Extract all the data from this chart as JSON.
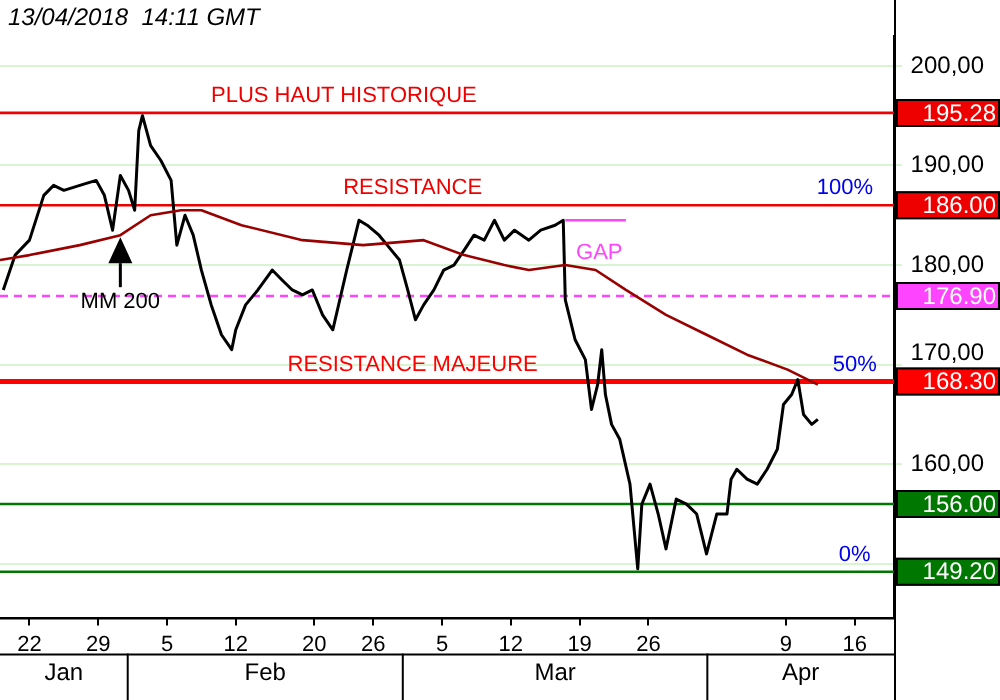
{
  "chart_data": {
    "type": "line",
    "series": [
      {
        "color": "#000000",
        "x": [
          "2018-01-19T08:00",
          "2018-01-20T13:00",
          "2018-01-22T00:00",
          "2018-01-23T11:00",
          "2018-01-24T11:00",
          "2018-01-25T12:00",
          "2018-01-27T03:00",
          "2018-01-28T19:00",
          "2018-01-29T15:00",
          "2018-01-30T11:00",
          "2018-01-31T06:00",
          "2018-02-01T02:00",
          "2018-02-01T17:00",
          "2018-02-02T03:00",
          "2018-02-02T12:00",
          "2018-02-03T08:00",
          "2018-02-04T09:00",
          "2018-02-05T10:00",
          "2018-02-06T00:00",
          "2018-02-06T20:00",
          "2018-02-07T16:00",
          "2018-02-08T12:00",
          "2018-02-09T12:00",
          "2018-02-10T13:00",
          "2018-02-11T14:00",
          "2018-02-12T00:00",
          "2018-02-13T00:00",
          "2018-02-14T06:00",
          "2018-02-15T17:00",
          "2018-02-16T17:00",
          "2018-02-17T18:00",
          "2018-02-18T19:00",
          "2018-02-19T19:00",
          "2018-02-20T20:00",
          "2018-02-21T21:00",
          "2018-02-23T07:00",
          "2018-02-24T13:00",
          "2018-02-25T09:00",
          "2018-02-26T14:00",
          "2018-02-27T10:00",
          "2018-02-28T16:00",
          "2018-03-01T12:00",
          "2018-03-02T07:00",
          "2018-03-03T03:00",
          "2018-03-04T04:00",
          "2018-03-05T04:00",
          "2018-03-06T05:00",
          "2018-03-07T06:00",
          "2018-03-08T06:00",
          "2018-03-09T07:00",
          "2018-03-10T08:00",
          "2018-03-11T08:00",
          "2018-03-12T09:00",
          "2018-03-13T20:00",
          "2018-03-15T01:00",
          "2018-03-16T12:00",
          "2018-03-17T08:00",
          "2018-03-17T13:00",
          "2018-03-18T13:00",
          "2018-03-19T14:00",
          "2018-03-20T05:00",
          "2018-03-20T20:00",
          "2018-03-21T06:00",
          "2018-03-21T15:00",
          "2018-03-22T06:00",
          "2018-03-23T02:00",
          "2018-03-24T03:00",
          "2018-03-24T22:00",
          "2018-03-25T08:00",
          "2018-03-26T04:00",
          "2018-03-27T00:00",
          "2018-03-27T19:00",
          "2018-03-28T20:00",
          "2018-03-29T21:00",
          "2018-03-30T22:00",
          "2018-03-31T22:00",
          "2018-04-01T23:00",
          "2018-04-03T00:00",
          "2018-04-03T10:00",
          "2018-04-04T00:00",
          "2018-04-05T01:00",
          "2018-04-06T02:00",
          "2018-04-07T02:00",
          "2018-04-08T03:00",
          "2018-04-08T18:00",
          "2018-04-09T14:00",
          "2018-04-10T05:00",
          "2018-04-10T19:00",
          "2018-04-11T15:00",
          "2018-04-12T06:00"
        ],
        "values": [
          177.5,
          181,
          182.5,
          187,
          188,
          187.5,
          188,
          188.5,
          187,
          183.5,
          189,
          187.5,
          185.5,
          193.5,
          195,
          192,
          190.5,
          188.5,
          182,
          185,
          183,
          179.5,
          176,
          173,
          171.5,
          173.5,
          176,
          177.5,
          179.5,
          178.5,
          177.5,
          177,
          177.5,
          175,
          173.5,
          179.5,
          184.5,
          184,
          183,
          182,
          180.5,
          177.5,
          174.5,
          176,
          177.5,
          179.5,
          180,
          181.5,
          183,
          182.5,
          184.5,
          182.5,
          183.5,
          182.5,
          183.5,
          184,
          184.5,
          176.5,
          172.5,
          170.5,
          165.5,
          168,
          171.5,
          167,
          164,
          162.5,
          158,
          149.5,
          156,
          158,
          155,
          151.5,
          156.5,
          156,
          155,
          151,
          155,
          155,
          158.5,
          159.5,
          158.5,
          158,
          159.5,
          161.5,
          166,
          167,
          168.5,
          165,
          164,
          164.5
        ]
      },
      {
        "color": "#990000",
        "x": [
          "2018-01-19T00:00",
          "2018-01-22T00:00",
          "2018-01-27T03:00",
          "2018-01-31T06:00",
          "2018-02-03T08:00",
          "2018-02-06T10:00",
          "2018-02-08T12:00",
          "2018-02-12T14:00",
          "2018-02-18T19:00",
          "2018-02-24T23:00",
          "2018-03-03T03:00",
          "2018-03-07T06:00",
          "2018-03-11T08:00",
          "2018-03-13T20:00",
          "2018-03-17T13:00",
          "2018-03-20T15:00",
          "2018-03-23T17:00",
          "2018-03-27T19:00",
          "2018-03-31T22:00",
          "2018-04-05T01:00",
          "2018-04-09T04:00",
          "2018-04-12T06:00"
        ],
        "values": [
          180.5,
          181,
          182,
          183,
          185,
          185.5,
          185.5,
          184,
          182.5,
          182,
          182.5,
          181,
          180,
          179.5,
          180,
          179.5,
          177.5,
          175,
          173,
          171,
          169.5,
          168
        ]
      },
      {
        "color": "#ff44ff",
        "x": [
          "2018-03-17T13:00",
          "2018-03-23T17:00"
        ],
        "values": [
          184.5,
          184.5
        ]
      }
    ],
    "xlim": [
      "2018-01-19",
      "2018-04-20"
    ],
    "xticks": [
      {
        "value": "2018-01-22",
        "label": "22"
      },
      {
        "value": "2018-01-29",
        "label": "29"
      },
      {
        "value": "2018-02-05",
        "label": "5"
      },
      {
        "value": "2018-02-12",
        "label": "12"
      },
      {
        "value": "2018-02-20",
        "label": "20"
      },
      {
        "value": "2018-02-26",
        "label": "26"
      },
      {
        "value": "2018-03-05",
        "label": "5"
      },
      {
        "value": "2018-03-12",
        "label": "12"
      },
      {
        "value": "2018-03-19",
        "label": "19"
      },
      {
        "value": "2018-03-26",
        "label": "26"
      },
      {
        "value": "2018-04-09",
        "label": "9"
      },
      {
        "value": "2018-04-16",
        "label": "16"
      }
    ],
    "ylim": [
      144.6,
      203
    ],
    "yticks": [
      {
        "value": 150,
        "label": null
      },
      {
        "value": 160,
        "label": "160,00"
      },
      {
        "value": 170,
        "label": "170,00"
      },
      {
        "value": 180,
        "label": "180,00"
      },
      {
        "value": 190,
        "label": "190,00"
      },
      {
        "value": 200,
        "label": "200,00"
      }
    ],
    "grid": "y",
    "legend": false,
    "ref_lines": [
      {
        "axis": "y",
        "value": 195.28,
        "label": "195.28",
        "color": "#ee0000"
      },
      {
        "axis": "y",
        "value": 186,
        "label": "186.00",
        "color": "#ee0000"
      },
      {
        "axis": "y",
        "value": 176.9,
        "label": "176.90",
        "color": "#ff44ff",
        "line_style": "dashed"
      },
      {
        "axis": "y",
        "value": 168.3,
        "label": "168.30",
        "color": "#ff0000"
      },
      {
        "axis": "y",
        "value": 156,
        "label": "156.00",
        "color": "#007700"
      },
      {
        "axis": "y",
        "value": 149.2,
        "label": "149.20",
        "color": "#007700"
      }
    ],
    "annotations": [
      "13/04/2018  14:11 GMT",
      {
        "text": "MM 200",
        "x": "2018-01-31T06:00",
        "y": 183
      },
      {
        "text": "PLUS HAUT HISTORIQUE",
        "x": "2018-02-23",
        "y": 195.28
      },
      {
        "text": "RESISTANCE",
        "x": "2018-03-02",
        "y": 186
      },
      {
        "text": "100%",
        "x": "2018-04-15",
        "y": 186
      },
      {
        "text": "GAP",
        "x": "2018-03-21",
        "y": 179.5
      },
      {
        "text": "RESISTANCE MAJEURE",
        "x": "2018-03-02",
        "y": 168.3
      },
      {
        "text": "50%",
        "x": "2018-04-16",
        "y": 168.3
      },
      {
        "text": "0%",
        "x": "2018-04-16",
        "y": 149.2
      },
      "Jan",
      "Feb",
      "Mar",
      "Apr"
    ]
  }
}
